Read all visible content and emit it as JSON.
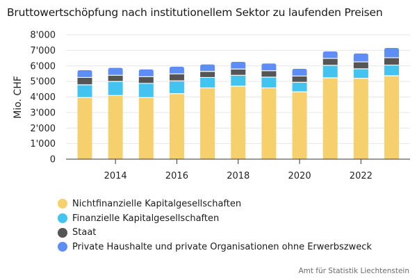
{
  "title": "Bruttowertschöpfung nach institutionellem Sektor zu laufenden Preisen",
  "source": "Amt für Statistik Liechtenstein",
  "chart_data": {
    "type": "bar",
    "stacked": true,
    "title": "Bruttowertschöpfung nach institutionellem Sektor zu laufenden Preisen",
    "xlabel": "",
    "ylabel": "Mio. CHF",
    "ylim": [
      0,
      8000
    ],
    "yticks": [
      0,
      1000,
      2000,
      3000,
      4000,
      5000,
      6000,
      7000,
      8000
    ],
    "ytick_labels": [
      "0",
      "1'000",
      "2'000",
      "3'000",
      "4'000",
      "5'000",
      "6'000",
      "7'000",
      "8'000"
    ],
    "xticks": [
      2014,
      2016,
      2018,
      2020,
      2022
    ],
    "xtick_labels": [
      "2014",
      "2016",
      "2018",
      "2020",
      "2022"
    ],
    "grid": true,
    "legend_position": "bottom-left",
    "categories": [
      2013,
      2014,
      2015,
      2016,
      2017,
      2018,
      2019,
      2020,
      2021,
      2022,
      2023
    ],
    "series": [
      {
        "name": "Nichtfinanzielle Kapitalgesellschaften",
        "color": "#F5D06C",
        "values": [
          3950,
          4080,
          3950,
          4200,
          4570,
          4680,
          4570,
          4320,
          5215,
          5185,
          5350
        ]
      },
      {
        "name": "Finanzielle Kapitalgesellschaften",
        "color": "#43C3F0",
        "values": [
          820,
          900,
          910,
          820,
          670,
          700,
          690,
          610,
          805,
          610,
          685
        ]
      },
      {
        "name": "Staat",
        "color": "#555555",
        "values": [
          470,
          400,
          430,
          450,
          390,
          400,
          415,
          400,
          445,
          445,
          475
        ]
      },
      {
        "name": "Private Haushalte und private Organisationen ohne Erwerbszweck",
        "color": "#5E8DF6",
        "values": [
          480,
          490,
          480,
          475,
          460,
          475,
          475,
          480,
          465,
          555,
          640
        ]
      }
    ]
  }
}
